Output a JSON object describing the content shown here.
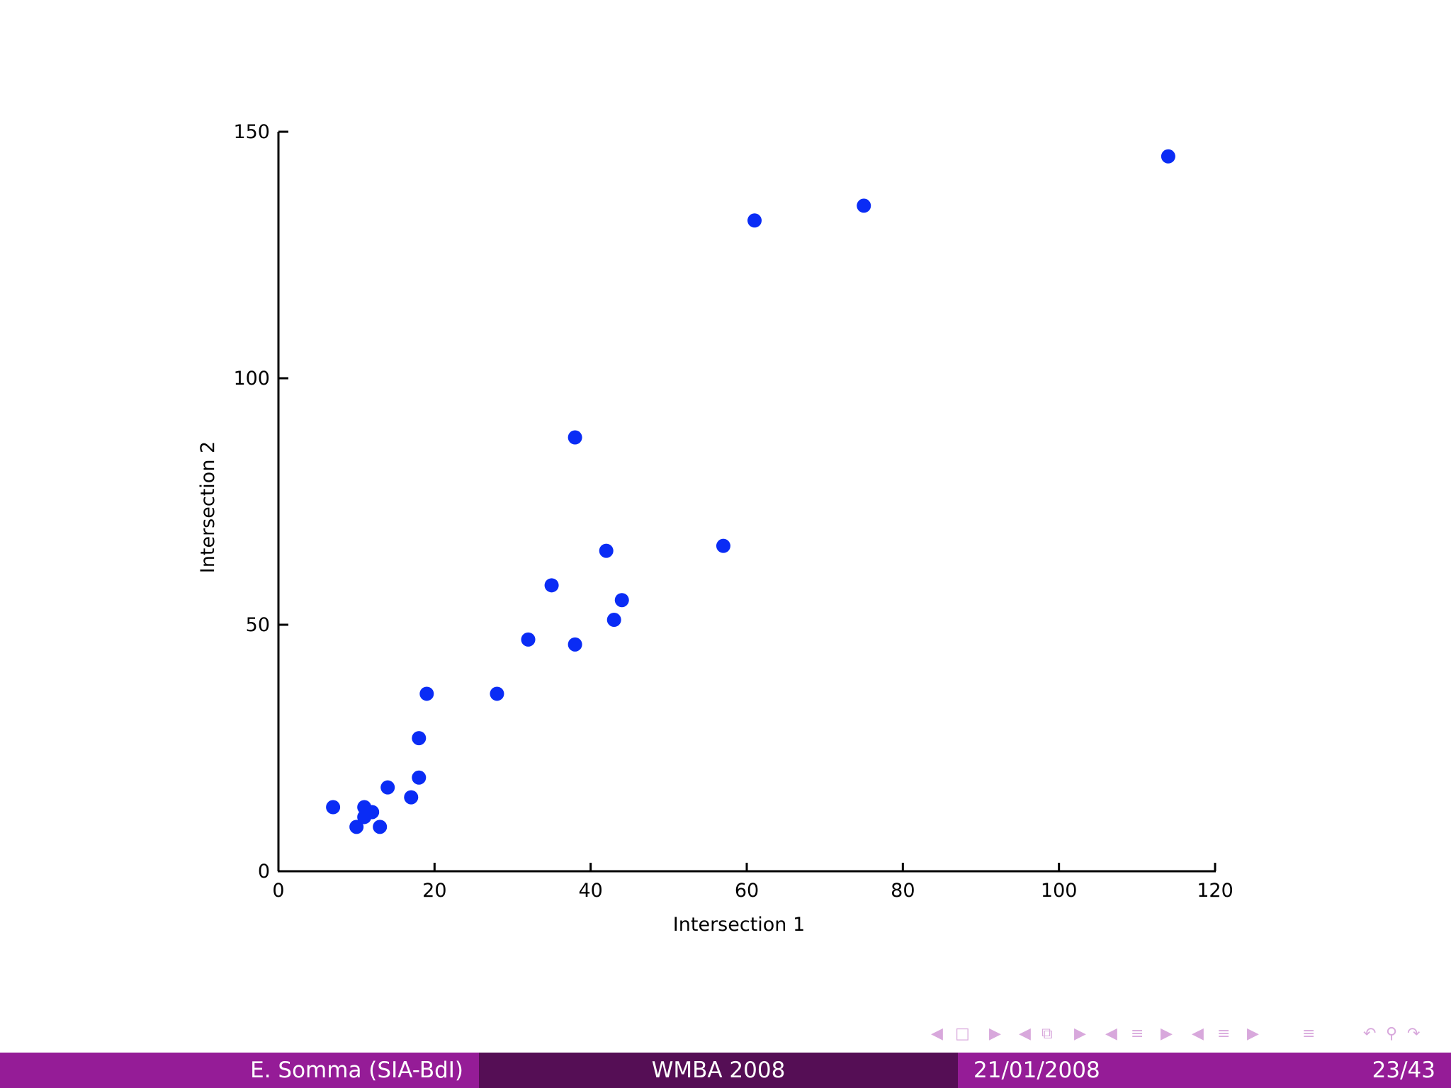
{
  "chart_data": {
    "type": "scatter",
    "xlabel": "Intersection 1",
    "ylabel": "Intersection 2",
    "xlim": [
      0,
      120
    ],
    "ylim": [
      0,
      150
    ],
    "xticks": [
      0,
      20,
      40,
      60,
      80,
      100,
      120
    ],
    "yticks": [
      0,
      50,
      100,
      150
    ],
    "grid": false,
    "marker_color": "#0a2cf5",
    "series": [
      {
        "points": [
          {
            "x": 7,
            "y": 13
          },
          {
            "x": 10,
            "y": 9
          },
          {
            "x": 11,
            "y": 13
          },
          {
            "x": 11,
            "y": 11
          },
          {
            "x": 12,
            "y": 12
          },
          {
            "x": 13,
            "y": 9
          },
          {
            "x": 14,
            "y": 17
          },
          {
            "x": 17,
            "y": 15
          },
          {
            "x": 18,
            "y": 19
          },
          {
            "x": 18,
            "y": 27
          },
          {
            "x": 19,
            "y": 36
          },
          {
            "x": 28,
            "y": 36
          },
          {
            "x": 32,
            "y": 47
          },
          {
            "x": 35,
            "y": 58
          },
          {
            "x": 38,
            "y": 46
          },
          {
            "x": 38,
            "y": 88
          },
          {
            "x": 42,
            "y": 65
          },
          {
            "x": 43,
            "y": 51
          },
          {
            "x": 44,
            "y": 55
          },
          {
            "x": 57,
            "y": 66
          },
          {
            "x": 61,
            "y": 132
          },
          {
            "x": 75,
            "y": 135
          },
          {
            "x": 114,
            "y": 145
          }
        ]
      }
    ]
  },
  "nav": {
    "color": "#d8a8dc",
    "icons": [
      "arrow-left",
      "frame",
      "arrow-right",
      "arrow-left",
      "subsection",
      "arrow-right",
      "arrow-left",
      "section",
      "arrow-right",
      "arrow-left",
      "presentation",
      "arrow-right",
      "align",
      "back",
      "search",
      "forward"
    ]
  },
  "footline": {
    "author": "E. Somma (SIA-BdI)",
    "title": "WMBA 2008",
    "date": "21/01/2008",
    "page": "23/43",
    "colors": {
      "light": "#951c97",
      "dark": "#550e55"
    }
  }
}
